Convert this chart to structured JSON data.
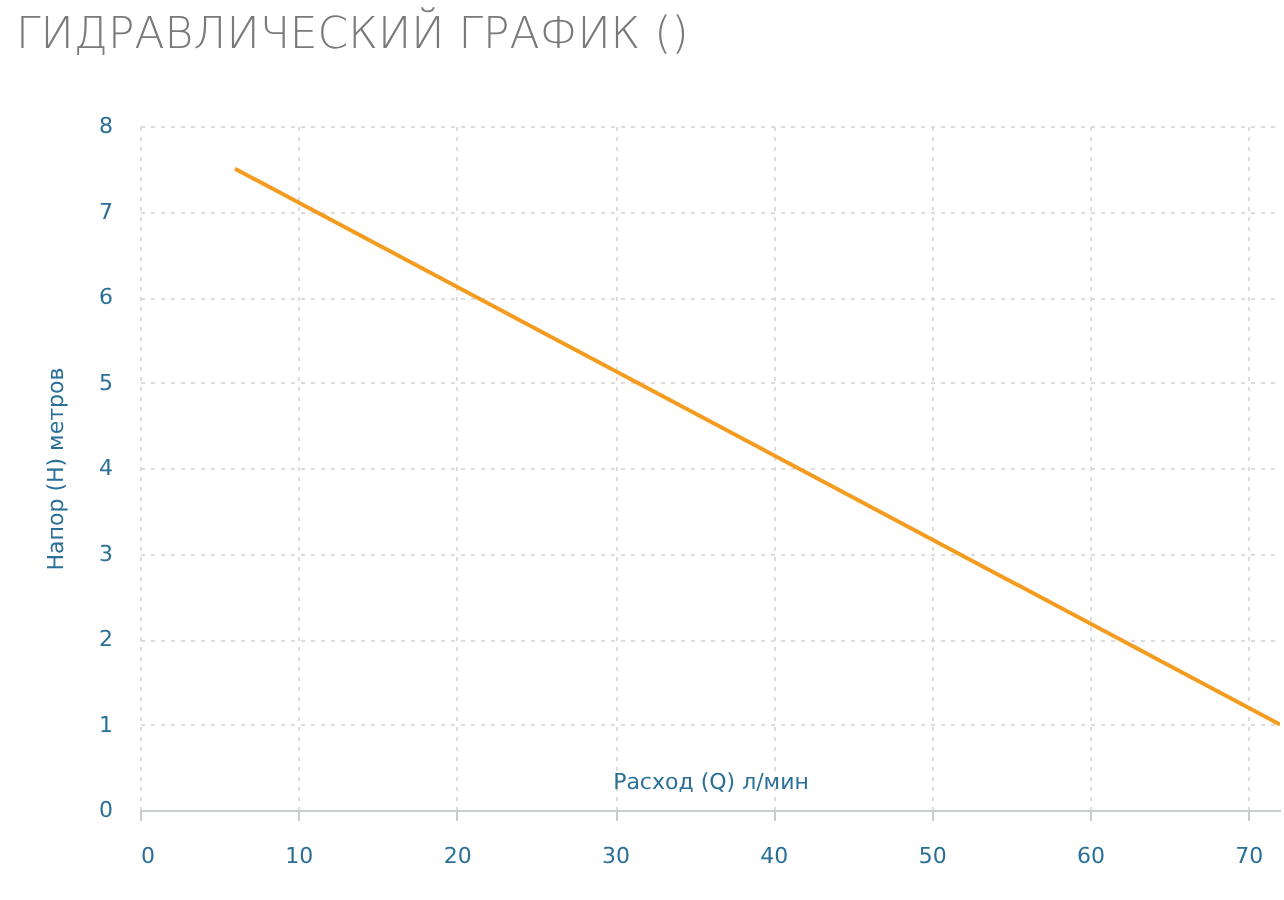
{
  "chart_data": {
    "type": "line",
    "title": "ГИДРАВЛИЧЕСКИЙ ГРАФИК ()",
    "xlabel": "Расход (Q) л/мин",
    "ylabel": "Напор (H) метров",
    "x": [
      6,
      72
    ],
    "series": [
      {
        "color": "#f39c1f",
        "values": [
          7.5,
          1.0
        ]
      }
    ],
    "xlim": [
      0,
      72
    ],
    "ylim": [
      0,
      8
    ],
    "xticks": [
      0,
      10,
      20,
      30,
      40,
      50,
      60,
      70
    ],
    "yticks": [
      0,
      1,
      2,
      3,
      4,
      5,
      6,
      7,
      8
    ],
    "grid": true,
    "marker": "none",
    "line_style": "solid"
  }
}
